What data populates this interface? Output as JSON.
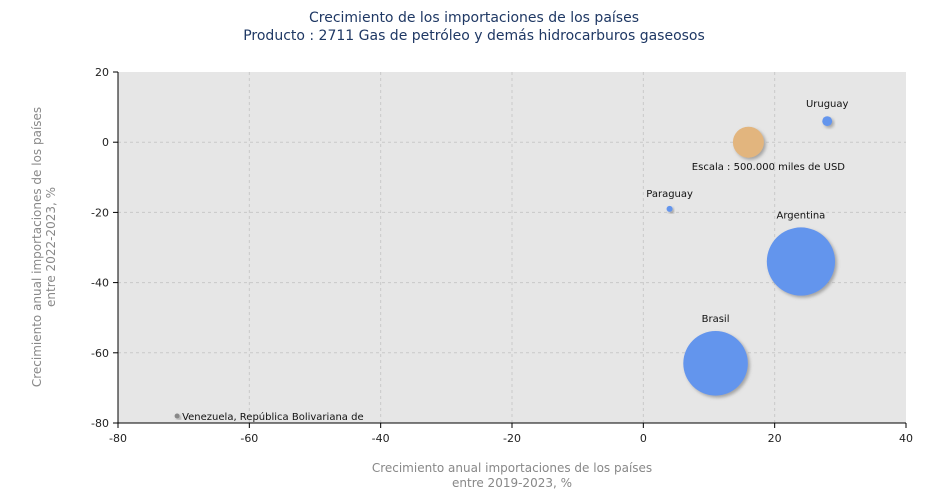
{
  "chart_data": {
    "type": "scatter",
    "title": "Crecimiento de los importaciones de los países",
    "subtitle": "Producto : 2711 Gas de petróleo y demás hidrocarburos gaseosos",
    "xlabel_lines": [
      "Crecimiento anual importaciones de los países",
      "entre 2019-2023, %"
    ],
    "ylabel_lines": [
      "Crecimiento anual importaciones de los países",
      "entre 2022-2023, %"
    ],
    "xlim": [
      -80,
      40
    ],
    "ylim": [
      -80,
      20
    ],
    "xticks": [
      -80,
      -60,
      -40,
      -20,
      0,
      20,
      40
    ],
    "yticks": [
      20,
      0,
      -20,
      -40,
      -60,
      -80
    ],
    "grid": true,
    "scale_label": "Escala : 500.000 miles de USD",
    "scale_bubble": {
      "x": 16,
      "y": 0,
      "color": "#e2b57e"
    },
    "series": [
      {
        "label": "Uruguay",
        "x": 28,
        "y": 6,
        "size": 0.08,
        "color": "#6495ed"
      },
      {
        "label": "Paraguay",
        "x": 4,
        "y": -19,
        "size": 0.03,
        "color": "#6495ed"
      },
      {
        "label": "Argentina",
        "x": 24,
        "y": -34,
        "size": 3.8,
        "color": "#6495ed"
      },
      {
        "label": "Brasil",
        "x": 11,
        "y": -63,
        "size": 3.4,
        "color": "#6495ed"
      },
      {
        "label": "Venezuela, República Bolivariana de",
        "x": -71,
        "y": -78,
        "size": 0.0,
        "color": "#888888"
      }
    ]
  }
}
